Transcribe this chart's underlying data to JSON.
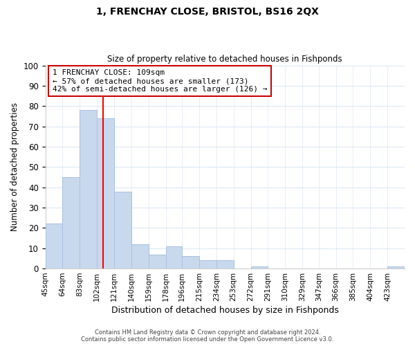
{
  "title": "1, FRENCHAY CLOSE, BRISTOL, BS16 2QX",
  "subtitle": "Size of property relative to detached houses in Fishponds",
  "xlabel": "Distribution of detached houses by size in Fishponds",
  "ylabel": "Number of detached properties",
  "bar_color": "#c8d9ee",
  "bar_edge_color": "#a8c0df",
  "redline_x": 109,
  "categories": [
    "45sqm",
    "64sqm",
    "83sqm",
    "102sqm",
    "121sqm",
    "140sqm",
    "159sqm",
    "178sqm",
    "196sqm",
    "215sqm",
    "234sqm",
    "253sqm",
    "272sqm",
    "291sqm",
    "310sqm",
    "329sqm",
    "347sqm",
    "366sqm",
    "385sqm",
    "404sqm",
    "423sqm"
  ],
  "values": [
    22,
    45,
    78,
    74,
    38,
    12,
    7,
    11,
    6,
    4,
    4,
    0,
    1,
    0,
    0,
    0,
    0,
    0,
    0,
    0,
    1
  ],
  "bin_edges": [
    45,
    64,
    83,
    102,
    121,
    140,
    159,
    178,
    196,
    215,
    234,
    253,
    272,
    291,
    310,
    329,
    347,
    366,
    385,
    404,
    423,
    442
  ],
  "ylim": [
    0,
    100
  ],
  "yticks": [
    0,
    10,
    20,
    30,
    40,
    50,
    60,
    70,
    80,
    90,
    100
  ],
  "annotation_title": "1 FRENCHAY CLOSE: 109sqm",
  "annotation_line1": "← 57% of detached houses are smaller (173)",
  "annotation_line2": "42% of semi-detached houses are larger (126) →",
  "footer_line1": "Contains HM Land Registry data © Crown copyright and database right 2024.",
  "footer_line2": "Contains public sector information licensed under the Open Government Licence v3.0.",
  "grid_color": "#dce8f5",
  "background_color": "#ffffff"
}
